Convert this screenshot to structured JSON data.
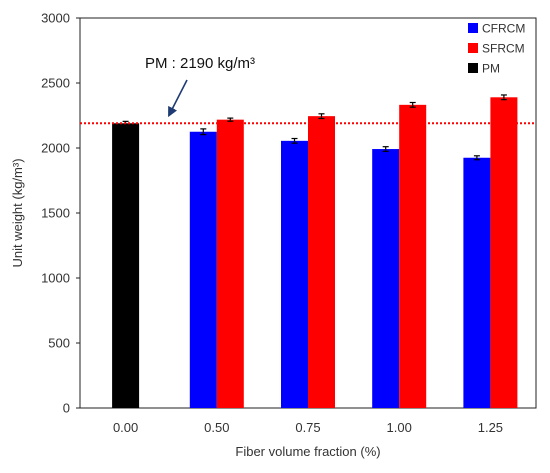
{
  "chart_data": {
    "type": "bar",
    "title": "",
    "xlabel": "Fiber volume fraction (%)",
    "ylabel": "Unit weight (kg/m³)",
    "ylim": [
      0,
      3000
    ],
    "yticks": [
      0,
      500,
      1000,
      1500,
      2000,
      2500,
      3000
    ],
    "categories": [
      "0.00",
      "0.50",
      "0.75",
      "1.00",
      "1.25"
    ],
    "series": [
      {
        "name": "CFRCM",
        "color": "#0000ff",
        "values": [
          null,
          2125,
          2055,
          1992,
          1925
        ],
        "errors": [
          null,
          22,
          18,
          18,
          15
        ]
      },
      {
        "name": "SFRCM",
        "color": "#ff0000",
        "values": [
          null,
          2218,
          2245,
          2332,
          2390
        ],
        "errors": [
          null,
          12,
          18,
          18,
          18
        ]
      },
      {
        "name": "PM",
        "color": "#000000",
        "values": [
          2190,
          null,
          null,
          null,
          null
        ],
        "errors": [
          15,
          null,
          null,
          null,
          null
        ]
      }
    ],
    "reference_line": {
      "value": 2190,
      "color": "#ff0000",
      "style": "dotted"
    },
    "annotation": {
      "text": "PM : 2190 kg/m³",
      "target": 2190
    },
    "legend": {
      "placement": "top-right"
    },
    "grid": false
  }
}
